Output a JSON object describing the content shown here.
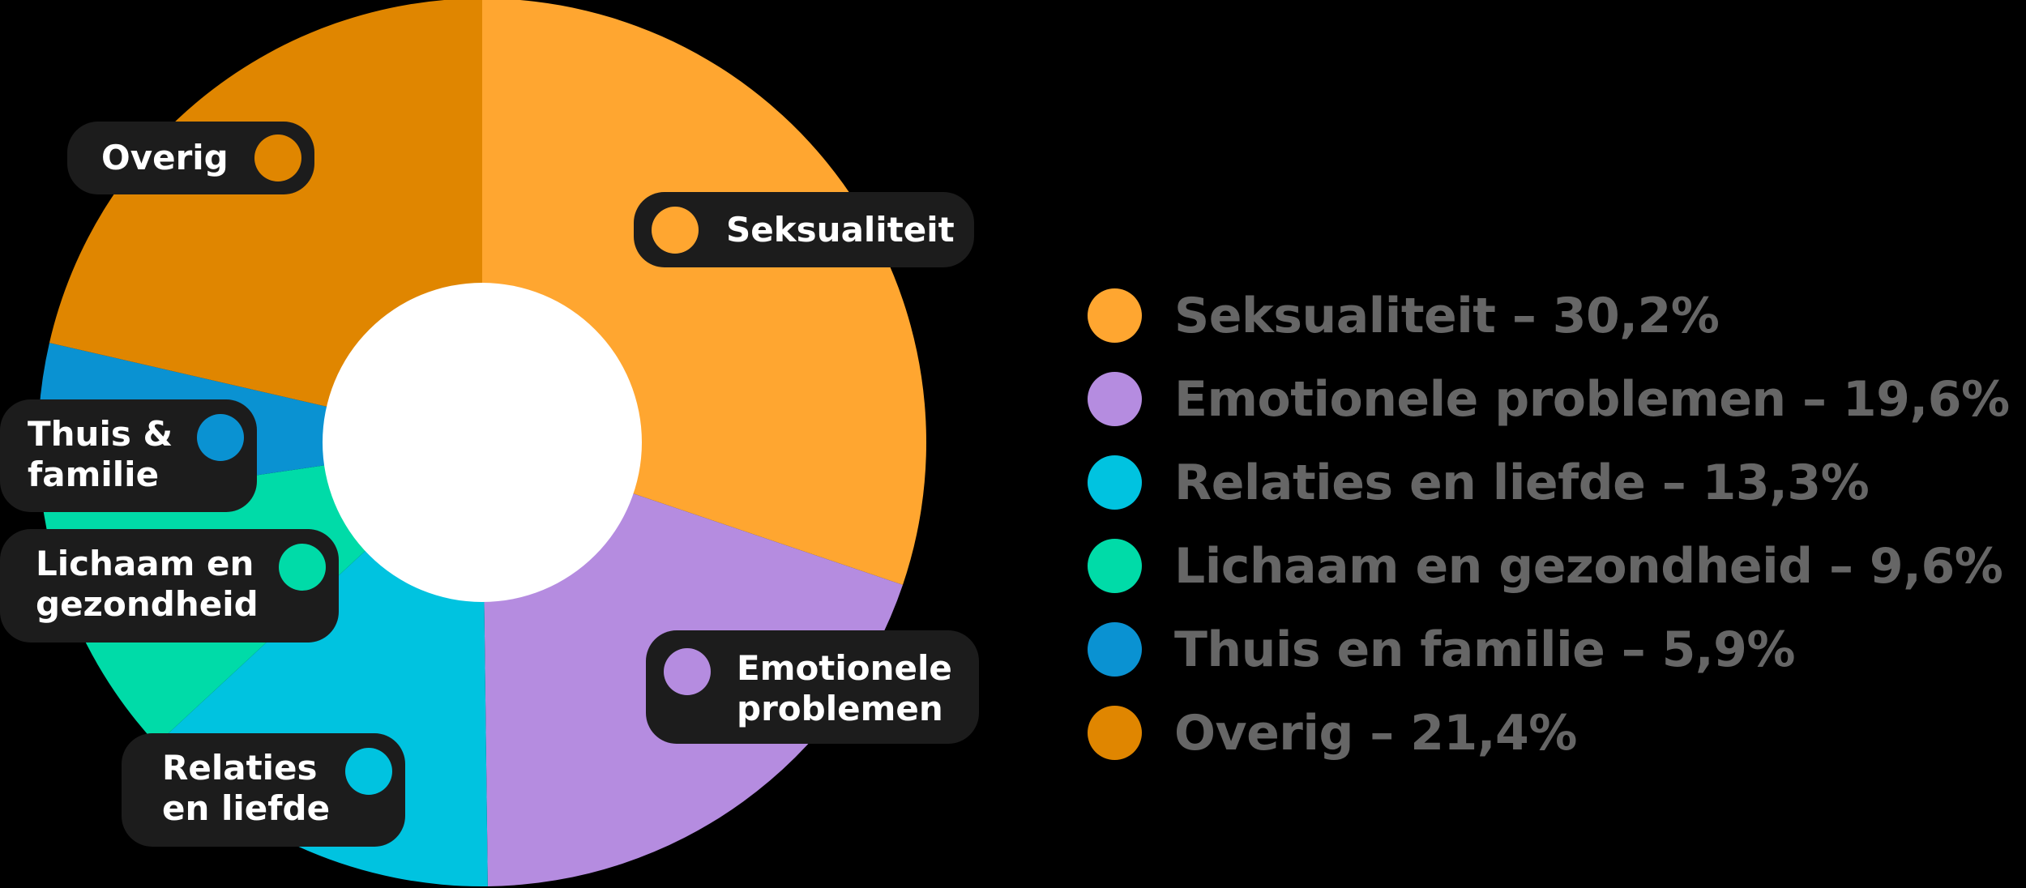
{
  "chart_data": {
    "type": "pie",
    "donut": true,
    "title": "",
    "categories": [
      "Seksualiteit",
      "Emotionele problemen",
      "Relaties en liefde",
      "Lichaam en gezondheid",
      "Thuis en familie",
      "Overig"
    ],
    "values": [
      30.2,
      19.6,
      13.3,
      9.6,
      5.9,
      21.4
    ],
    "unit": "%",
    "colors": [
      "#FFA630",
      "#B58CE0",
      "#00C3E0",
      "#00DBA8",
      "#0A92D2",
      "#E08600"
    ],
    "legend_position": "right",
    "start_angle": "top, clockwise"
  },
  "slice_labels": [
    {
      "text": "Seksualiteit",
      "color": "#FFA630"
    },
    {
      "text": "Emotionele\nproblemen",
      "color": "#B58CE0"
    },
    {
      "text": "Relaties\nen liefde",
      "color": "#00C3E0"
    },
    {
      "text": "Lichaam en\ngezondheid",
      "color": "#00DBA8"
    },
    {
      "text": "Thuis &\nfamilie",
      "color": "#0A92D2"
    },
    {
      "text": "Overig",
      "color": "#E08600"
    }
  ],
  "legend": [
    {
      "label": "Seksualiteit – 30,2%",
      "color": "#FFA630"
    },
    {
      "label": "Emotionele problemen – 19,6%",
      "color": "#B58CE0"
    },
    {
      "label": "Relaties en liefde – 13,3%",
      "color": "#00C3E0"
    },
    {
      "label": "Lichaam en gezondheid – 9,6%",
      "color": "#00DBA8"
    },
    {
      "label": "Thuis en familie – 5,9%",
      "color": "#0A92D2"
    },
    {
      "label": "Overig – 21,4%",
      "color": "#E08600"
    }
  ],
  "style": {
    "pill_bg": "#1c1c1c",
    "hole_color": "#ffffff",
    "background": "#000000",
    "legend_text_color": "#666666"
  }
}
